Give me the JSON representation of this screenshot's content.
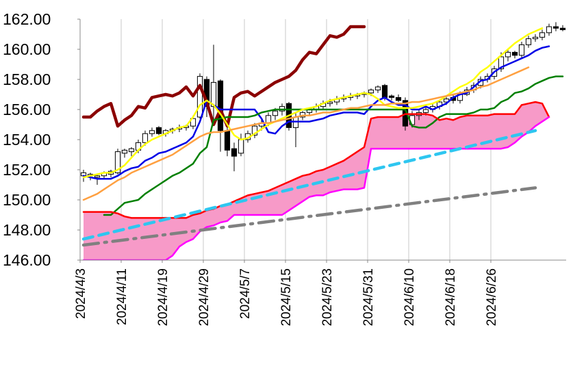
{
  "chart_data": {
    "type": "line",
    "subtype": "candlestick-with-ichimoku",
    "ylim": [
      146,
      162
    ],
    "yticks": [
      "146.00",
      "148.00",
      "150.00",
      "152.00",
      "154.00",
      "156.00",
      "158.00",
      "160.00",
      "162.00"
    ],
    "x_tick_labels": [
      "2024/4/3",
      "2024/4/11",
      "2024/4/19",
      "2024/4/29",
      "2024/5/7",
      "2024/5/15",
      "2024/5/23",
      "2024/5/31",
      "2024/6/10",
      "2024/6/18",
      "2024/6/26"
    ],
    "gridlines": "vertical-at-ticks",
    "n_periods": 71,
    "cloud_fill": "#f79ac8",
    "series": [
      {
        "key": "chikou",
        "color": "#8b0000",
        "dash": "solid",
        "start": 0,
        "values": [
          155.5,
          155.5,
          155.9,
          156.2,
          156.4,
          154.9,
          155.3,
          155.6,
          156.2,
          156.1,
          156.8,
          156.9,
          157.0,
          156.9,
          157.1,
          157.5,
          156.9,
          157.6,
          156.5,
          155.0,
          156.0,
          154.9,
          156.8,
          157.1,
          157.2,
          156.9,
          157.2,
          157.5,
          157.8,
          158.0,
          158.2,
          158.6,
          159.3,
          159.8,
          159.7,
          160.3,
          160.9,
          160.8,
          161.0,
          161.5,
          161.5,
          161.5
        ]
      },
      {
        "key": "tenkan",
        "color": "#0000e6",
        "dash": "solid",
        "start": 0,
        "values": [
          151.6,
          151.5,
          151.4,
          151.4,
          151.4,
          151.6,
          151.9,
          152.1,
          152.2,
          152.6,
          152.8,
          153.1,
          153.2,
          153.4,
          153.6,
          153.8,
          154.2,
          155.2,
          156.6,
          156.3,
          156.0,
          156.0,
          156.0,
          156.0,
          156.0,
          156.0,
          155.4,
          154.5,
          154.4,
          154.9,
          155.2,
          155.2,
          155.2,
          155.2,
          155.3,
          155.4,
          155.6,
          155.7,
          155.8,
          155.8,
          155.8,
          155.7,
          156.2,
          156.6,
          156.8,
          156.5,
          156.3,
          156.3,
          156.0,
          156.0,
          156.2,
          156.0,
          156.2,
          156.4,
          156.8,
          157.0,
          157.1,
          157.5,
          157.9,
          158.0,
          158.5,
          158.8,
          159.0,
          159.2,
          159.4,
          159.6,
          159.9,
          160.1,
          160.2
        ]
      },
      {
        "key": "kijun",
        "color": "#008000",
        "dash": "solid",
        "start": 3,
        "values": [
          149.0,
          149.0,
          149.4,
          149.8,
          149.9,
          150.0,
          150.4,
          150.7,
          151.0,
          151.3,
          151.6,
          151.8,
          152.1,
          152.4,
          153.1,
          153.5,
          155.3,
          155.4,
          155.5,
          155.5,
          155.5,
          155.5,
          155.6,
          155.8,
          155.9,
          156.0,
          156.0,
          156.0,
          156.0,
          156.0,
          156.0,
          156.0,
          156.0,
          156.0,
          156.0,
          156.0,
          156.0,
          156.0,
          156.0,
          156.0,
          156.0,
          156.0,
          156.0,
          156.0,
          156.0,
          154.9,
          154.8,
          154.8,
          155.1,
          155.5,
          155.7,
          155.7,
          155.7,
          155.7,
          155.8,
          156.0,
          156.0,
          156.1,
          156.5,
          156.7,
          157.1,
          157.2,
          157.4,
          157.7,
          157.9,
          158.1,
          158.2,
          158.2
        ]
      },
      {
        "key": "ma_short",
        "color": "#ffff00",
        "dash": "solid",
        "start": 0,
        "values": [
          151.5,
          151.6,
          151.7,
          151.8,
          151.8,
          152.0,
          152.3,
          152.8,
          153.3,
          153.7,
          154.0,
          154.2,
          154.4,
          154.6,
          154.8,
          154.9,
          155.5,
          156.3,
          156.6,
          156.3,
          155.7,
          155.0,
          154.3,
          154.0,
          154.1,
          154.4,
          154.7,
          155.0,
          155.2,
          155.4,
          155.6,
          155.8,
          156.0,
          156.1,
          156.2,
          156.4,
          156.6,
          156.7,
          156.8,
          156.9,
          157.0,
          157.1,
          157.0,
          156.7,
          156.3,
          156.2,
          156.1,
          156.1,
          156.1,
          156.2,
          156.3,
          156.4,
          156.6,
          156.9,
          157.2,
          157.5,
          157.7,
          158.0,
          158.5,
          158.8,
          159.2,
          159.6,
          160.0,
          160.4,
          160.7,
          161.0,
          161.2,
          161.4
        ]
      },
      {
        "key": "ma_mid",
        "color": "#ffa040",
        "dash": "solid",
        "start": 0,
        "values": [
          150.0,
          150.2,
          150.4,
          150.7,
          151.0,
          151.3,
          151.5,
          151.8,
          152.0,
          152.2,
          152.4,
          152.6,
          152.8,
          153.0,
          153.3,
          153.6,
          153.9,
          154.2,
          154.4,
          154.5,
          154.5,
          154.6,
          154.7,
          154.8,
          154.9,
          155.0,
          155.1,
          155.1,
          155.2,
          155.3,
          155.4,
          155.5,
          155.6,
          155.6,
          155.7,
          155.8,
          155.8,
          155.9,
          156.0,
          156.1,
          156.1,
          156.2,
          156.3,
          156.3,
          156.3,
          156.4,
          156.4,
          156.4,
          156.5,
          156.5,
          156.6,
          156.7,
          156.8,
          156.9,
          157.0,
          157.1,
          157.2,
          157.3,
          157.5,
          157.6,
          157.8,
          158.0,
          158.2,
          158.4,
          158.6,
          158.8
        ]
      },
      {
        "key": "senkou_a",
        "color": "#ff0000",
        "dash": "solid",
        "start": 0,
        "values": [
          149.2,
          149.2,
          149.2,
          149.2,
          149.2,
          149.1,
          148.9,
          148.8,
          148.8,
          148.8,
          148.8,
          148.8,
          148.8,
          148.8,
          148.8,
          148.8,
          149.0,
          149.1,
          149.3,
          149.4,
          149.6,
          149.7,
          149.9,
          150.1,
          150.3,
          150.4,
          150.5,
          150.6,
          150.8,
          151.0,
          151.2,
          151.4,
          151.6,
          151.7,
          151.9,
          152.0,
          152.2,
          152.4,
          152.6,
          152.9,
          153.2,
          153.5,
          155.4,
          155.5,
          155.5,
          155.5,
          155.5,
          155.7,
          155.7,
          155.7,
          155.7,
          155.6,
          155.3,
          155.4,
          155.3,
          155.5,
          155.6,
          155.6,
          155.6,
          155.6,
          155.7,
          155.7,
          155.7,
          155.7,
          156.3,
          156.4,
          156.5,
          156.4,
          155.5
        ]
      },
      {
        "key": "senkou_b",
        "color": "#ff00ff",
        "dash": "solid",
        "start": 0,
        "values": [
          146.0,
          146.0,
          146.0,
          146.0,
          146.0,
          146.0,
          146.0,
          146.0,
          146.0,
          146.0,
          146.0,
          146.0,
          146.0,
          146.3,
          146.9,
          147.2,
          147.4,
          147.9,
          148.2,
          148.3,
          148.5,
          148.6,
          149.0,
          149.0,
          149.0,
          149.0,
          149.0,
          149.0,
          149.0,
          149.0,
          149.3,
          149.6,
          149.9,
          150.2,
          150.3,
          150.3,
          150.5,
          150.6,
          150.7,
          150.7,
          150.7,
          150.8,
          153.4,
          153.4,
          153.4,
          153.4,
          153.4,
          153.4,
          153.4,
          153.4,
          153.4,
          153.4,
          153.4,
          153.4,
          153.4,
          153.4,
          153.4,
          153.4,
          153.4,
          153.4,
          153.4,
          153.4,
          153.5,
          153.8,
          154.2,
          154.5,
          154.9,
          155.2,
          155.5
        ]
      },
      {
        "key": "trend_upper",
        "color": "#2ec6f0",
        "dash": "dashed",
        "x_range": [
          0,
          66
        ],
        "y_range": [
          147.4,
          154.6
        ]
      },
      {
        "key": "trend_lower",
        "color": "#808080",
        "dash": "dashdot",
        "x_range": [
          0,
          66
        ],
        "y_range": [
          147.0,
          150.8
        ]
      }
    ],
    "candles": [
      {
        "o": 151.6,
        "h": 152.0,
        "l": 151.2,
        "c": 151.8
      },
      {
        "o": 151.6,
        "h": 151.8,
        "l": 151.3,
        "c": 151.7
      },
      {
        "o": 151.5,
        "h": 151.7,
        "l": 151.0,
        "c": 151.6
      },
      {
        "o": 151.6,
        "h": 151.9,
        "l": 151.4,
        "c": 151.8
      },
      {
        "o": 151.7,
        "h": 152.0,
        "l": 151.5,
        "c": 151.9
      },
      {
        "o": 151.8,
        "h": 153.4,
        "l": 151.7,
        "c": 153.2
      },
      {
        "o": 153.1,
        "h": 153.4,
        "l": 152.8,
        "c": 153.3
      },
      {
        "o": 153.2,
        "h": 153.5,
        "l": 152.9,
        "c": 153.4
      },
      {
        "o": 153.3,
        "h": 154.0,
        "l": 153.1,
        "c": 153.8
      },
      {
        "o": 153.8,
        "h": 154.6,
        "l": 153.6,
        "c": 154.4
      },
      {
        "o": 154.4,
        "h": 154.8,
        "l": 154.2,
        "c": 154.6
      },
      {
        "o": 154.8,
        "h": 154.9,
        "l": 154.3,
        "c": 154.4
      },
      {
        "o": 154.4,
        "h": 154.7,
        "l": 154.2,
        "c": 154.6
      },
      {
        "o": 154.6,
        "h": 154.8,
        "l": 154.4,
        "c": 154.7
      },
      {
        "o": 154.7,
        "h": 155.0,
        "l": 154.5,
        "c": 154.8
      },
      {
        "o": 154.8,
        "h": 155.0,
        "l": 154.6,
        "c": 154.9
      },
      {
        "o": 154.9,
        "h": 155.6,
        "l": 154.7,
        "c": 155.4
      },
      {
        "o": 155.5,
        "h": 158.4,
        "l": 155.4,
        "c": 158.2
      },
      {
        "o": 158.0,
        "h": 158.2,
        "l": 155.5,
        "c": 156.2
      },
      {
        "o": 156.2,
        "h": 160.3,
        "l": 155.0,
        "c": 157.8
      },
      {
        "o": 157.9,
        "h": 158.0,
        "l": 153.2,
        "c": 154.6
      },
      {
        "o": 154.6,
        "h": 155.2,
        "l": 152.9,
        "c": 153.3
      },
      {
        "o": 153.4,
        "h": 153.8,
        "l": 151.9,
        "c": 152.9
      },
      {
        "o": 153.1,
        "h": 154.4,
        "l": 152.9,
        "c": 154.0
      },
      {
        "o": 154.0,
        "h": 154.6,
        "l": 153.8,
        "c": 154.4
      },
      {
        "o": 154.3,
        "h": 155.1,
        "l": 154.1,
        "c": 154.9
      },
      {
        "o": 154.9,
        "h": 155.3,
        "l": 154.6,
        "c": 155.1
      },
      {
        "o": 155.1,
        "h": 155.8,
        "l": 154.9,
        "c": 155.6
      },
      {
        "o": 155.6,
        "h": 156.1,
        "l": 155.3,
        "c": 155.9
      },
      {
        "o": 155.9,
        "h": 156.4,
        "l": 155.6,
        "c": 156.2
      },
      {
        "o": 156.4,
        "h": 156.5,
        "l": 154.6,
        "c": 154.8
      },
      {
        "o": 154.8,
        "h": 155.8,
        "l": 153.5,
        "c": 155.5
      },
      {
        "o": 155.5,
        "h": 155.9,
        "l": 155.3,
        "c": 155.8
      },
      {
        "o": 155.8,
        "h": 156.1,
        "l": 155.6,
        "c": 156.0
      },
      {
        "o": 156.0,
        "h": 156.4,
        "l": 155.8,
        "c": 156.2
      },
      {
        "o": 156.2,
        "h": 156.6,
        "l": 156.0,
        "c": 156.4
      },
      {
        "o": 156.4,
        "h": 156.7,
        "l": 156.2,
        "c": 156.5
      },
      {
        "o": 156.5,
        "h": 156.9,
        "l": 156.3,
        "c": 156.7
      },
      {
        "o": 156.7,
        "h": 157.0,
        "l": 156.5,
        "c": 156.8
      },
      {
        "o": 156.8,
        "h": 157.1,
        "l": 156.6,
        "c": 156.9
      },
      {
        "o": 156.9,
        "h": 157.1,
        "l": 156.7,
        "c": 157.0
      },
      {
        "o": 157.0,
        "h": 157.2,
        "l": 156.8,
        "c": 157.1
      },
      {
        "o": 157.1,
        "h": 157.4,
        "l": 156.9,
        "c": 157.3
      },
      {
        "o": 157.3,
        "h": 157.6,
        "l": 157.1,
        "c": 157.5
      },
      {
        "o": 157.6,
        "h": 157.7,
        "l": 156.6,
        "c": 156.8
      },
      {
        "o": 156.9,
        "h": 157.0,
        "l": 156.6,
        "c": 156.8
      },
      {
        "o": 156.8,
        "h": 157.0,
        "l": 156.5,
        "c": 156.6
      },
      {
        "o": 156.6,
        "h": 156.8,
        "l": 154.6,
        "c": 154.9
      },
      {
        "o": 155.0,
        "h": 155.9,
        "l": 154.8,
        "c": 155.6
      },
      {
        "o": 155.6,
        "h": 156.0,
        "l": 155.3,
        "c": 155.8
      },
      {
        "o": 155.8,
        "h": 156.2,
        "l": 155.6,
        "c": 156.0
      },
      {
        "o": 156.0,
        "h": 156.4,
        "l": 155.8,
        "c": 156.2
      },
      {
        "o": 156.2,
        "h": 156.6,
        "l": 156.0,
        "c": 156.5
      },
      {
        "o": 156.5,
        "h": 156.9,
        "l": 156.3,
        "c": 156.7
      },
      {
        "o": 156.8,
        "h": 157.0,
        "l": 156.4,
        "c": 156.6
      },
      {
        "o": 156.6,
        "h": 157.2,
        "l": 156.4,
        "c": 157.0
      },
      {
        "o": 157.0,
        "h": 157.5,
        "l": 156.9,
        "c": 157.3
      },
      {
        "o": 157.3,
        "h": 157.8,
        "l": 157.1,
        "c": 157.6
      },
      {
        "o": 157.6,
        "h": 158.2,
        "l": 157.4,
        "c": 158.0
      },
      {
        "o": 158.0,
        "h": 158.4,
        "l": 157.8,
        "c": 158.2
      },
      {
        "o": 158.2,
        "h": 158.9,
        "l": 158.0,
        "c": 158.7
      },
      {
        "o": 158.7,
        "h": 159.8,
        "l": 158.5,
        "c": 159.5
      },
      {
        "o": 159.5,
        "h": 160.0,
        "l": 159.2,
        "c": 159.8
      },
      {
        "o": 159.8,
        "h": 159.9,
        "l": 159.4,
        "c": 159.6
      },
      {
        "o": 159.6,
        "h": 160.5,
        "l": 159.4,
        "c": 160.3
      },
      {
        "o": 160.3,
        "h": 160.9,
        "l": 160.1,
        "c": 160.7
      },
      {
        "o": 160.7,
        "h": 161.0,
        "l": 160.5,
        "c": 160.8
      },
      {
        "o": 160.8,
        "h": 161.3,
        "l": 160.6,
        "c": 161.1
      },
      {
        "o": 161.1,
        "h": 161.7,
        "l": 160.9,
        "c": 161.5
      },
      {
        "o": 161.5,
        "h": 161.8,
        "l": 161.2,
        "c": 161.4
      },
      {
        "o": 161.4,
        "h": 161.6,
        "l": 161.2,
        "c": 161.3
      }
    ]
  }
}
